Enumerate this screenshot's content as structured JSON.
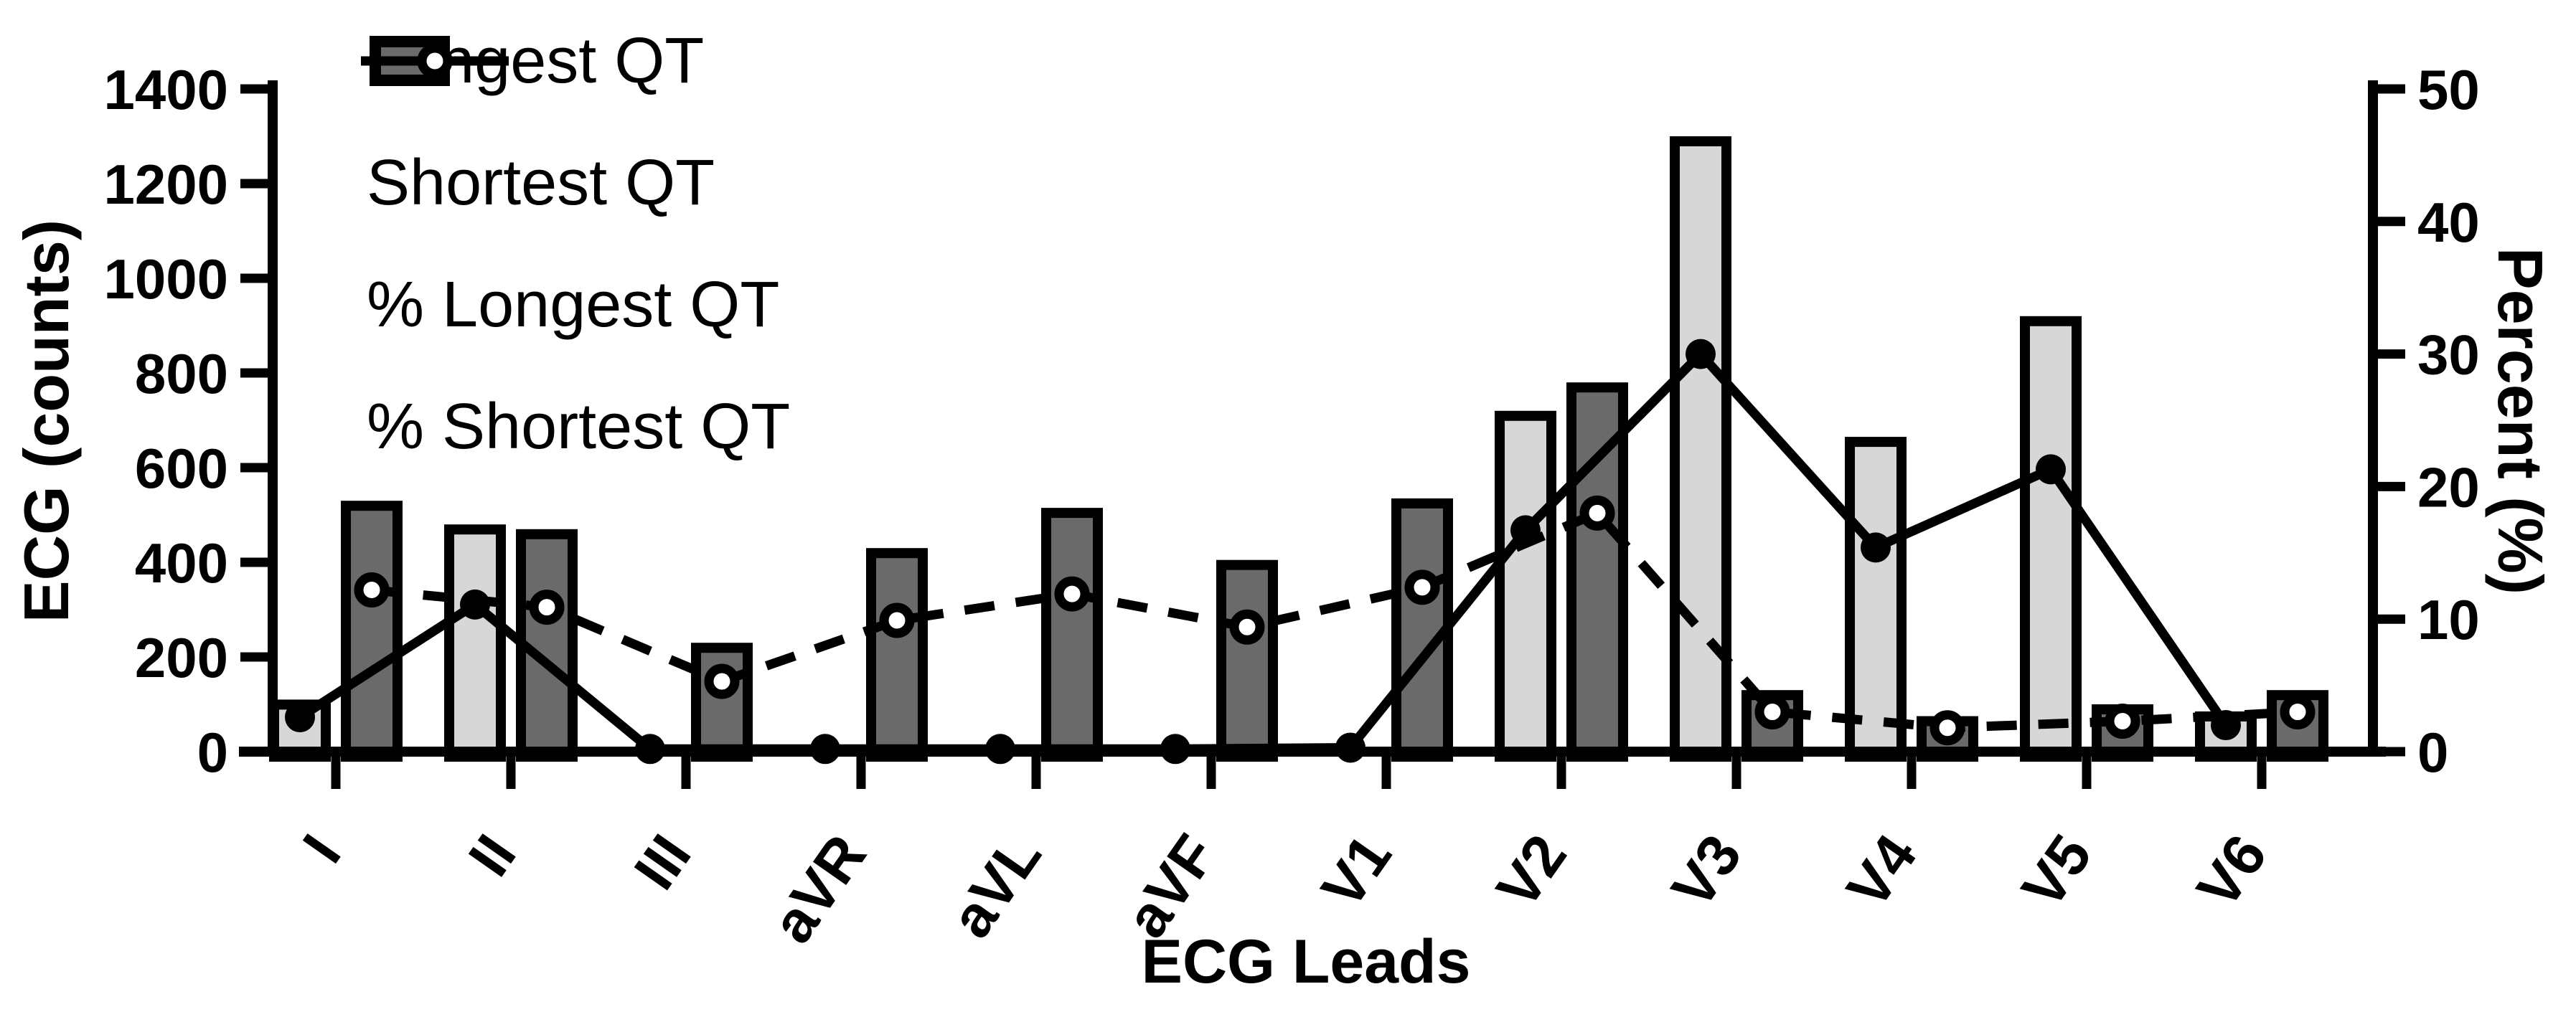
{
  "figure": {
    "background_color": "#ffffff",
    "foreground_color": "#000000",
    "bar_light_color": "#d7d7d7",
    "bar_dark_color": "#6a6a6a"
  },
  "chart_data": {
    "type": "bar+line combo (dual axis)",
    "categories": [
      "I",
      "II",
      "III",
      "aVR",
      "aVL",
      "aVF",
      "V1",
      "V2",
      "V3",
      "V4",
      "V5",
      "V6"
    ],
    "series": [
      {
        "name": "Longest QT",
        "type": "bar",
        "axis": "left",
        "color": "#d7d7d7",
        "values": [
          110,
          480,
          0,
          0,
          0,
          0,
          0,
          720,
          1300,
          665,
          920,
          85
        ]
      },
      {
        "name": "Shortest QT",
        "type": "bar",
        "axis": "left",
        "color": "#6a6a6a",
        "values": [
          530,
          470,
          230,
          430,
          515,
          405,
          535,
          780,
          130,
          75,
          100,
          130
        ]
      },
      {
        "name": "% Longest QT",
        "type": "line",
        "line_style": "solid",
        "marker": "filled-circle",
        "axis": "right",
        "values": [
          2.6,
          11.1,
          0.2,
          0.2,
          0.2,
          0.2,
          0.3,
          16.7,
          30.0,
          15.4,
          21.3,
          2.0
        ]
      },
      {
        "name": "% Shortest QT",
        "type": "line",
        "line_style": "dashed",
        "marker": "open-circle",
        "axis": "right",
        "values": [
          12.2,
          10.9,
          5.3,
          9.9,
          11.9,
          9.4,
          12.4,
          18.0,
          3.0,
          1.8,
          2.3,
          3.0
        ]
      }
    ],
    "left_axis": {
      "label": "ECG (counts)",
      "ticks": [
        "0",
        "200",
        "400",
        "600",
        "800",
        "1000",
        "1200",
        "1400"
      ],
      "range": [
        0,
        1400
      ]
    },
    "right_axis": {
      "label": "Percent (%)",
      "ticks": [
        "0",
        "10",
        "20",
        "30",
        "40",
        "50"
      ],
      "range": [
        0,
        50
      ]
    },
    "x_axis": {
      "label": "ECG Leads"
    },
    "grid": false,
    "legend_position": "top-left"
  }
}
